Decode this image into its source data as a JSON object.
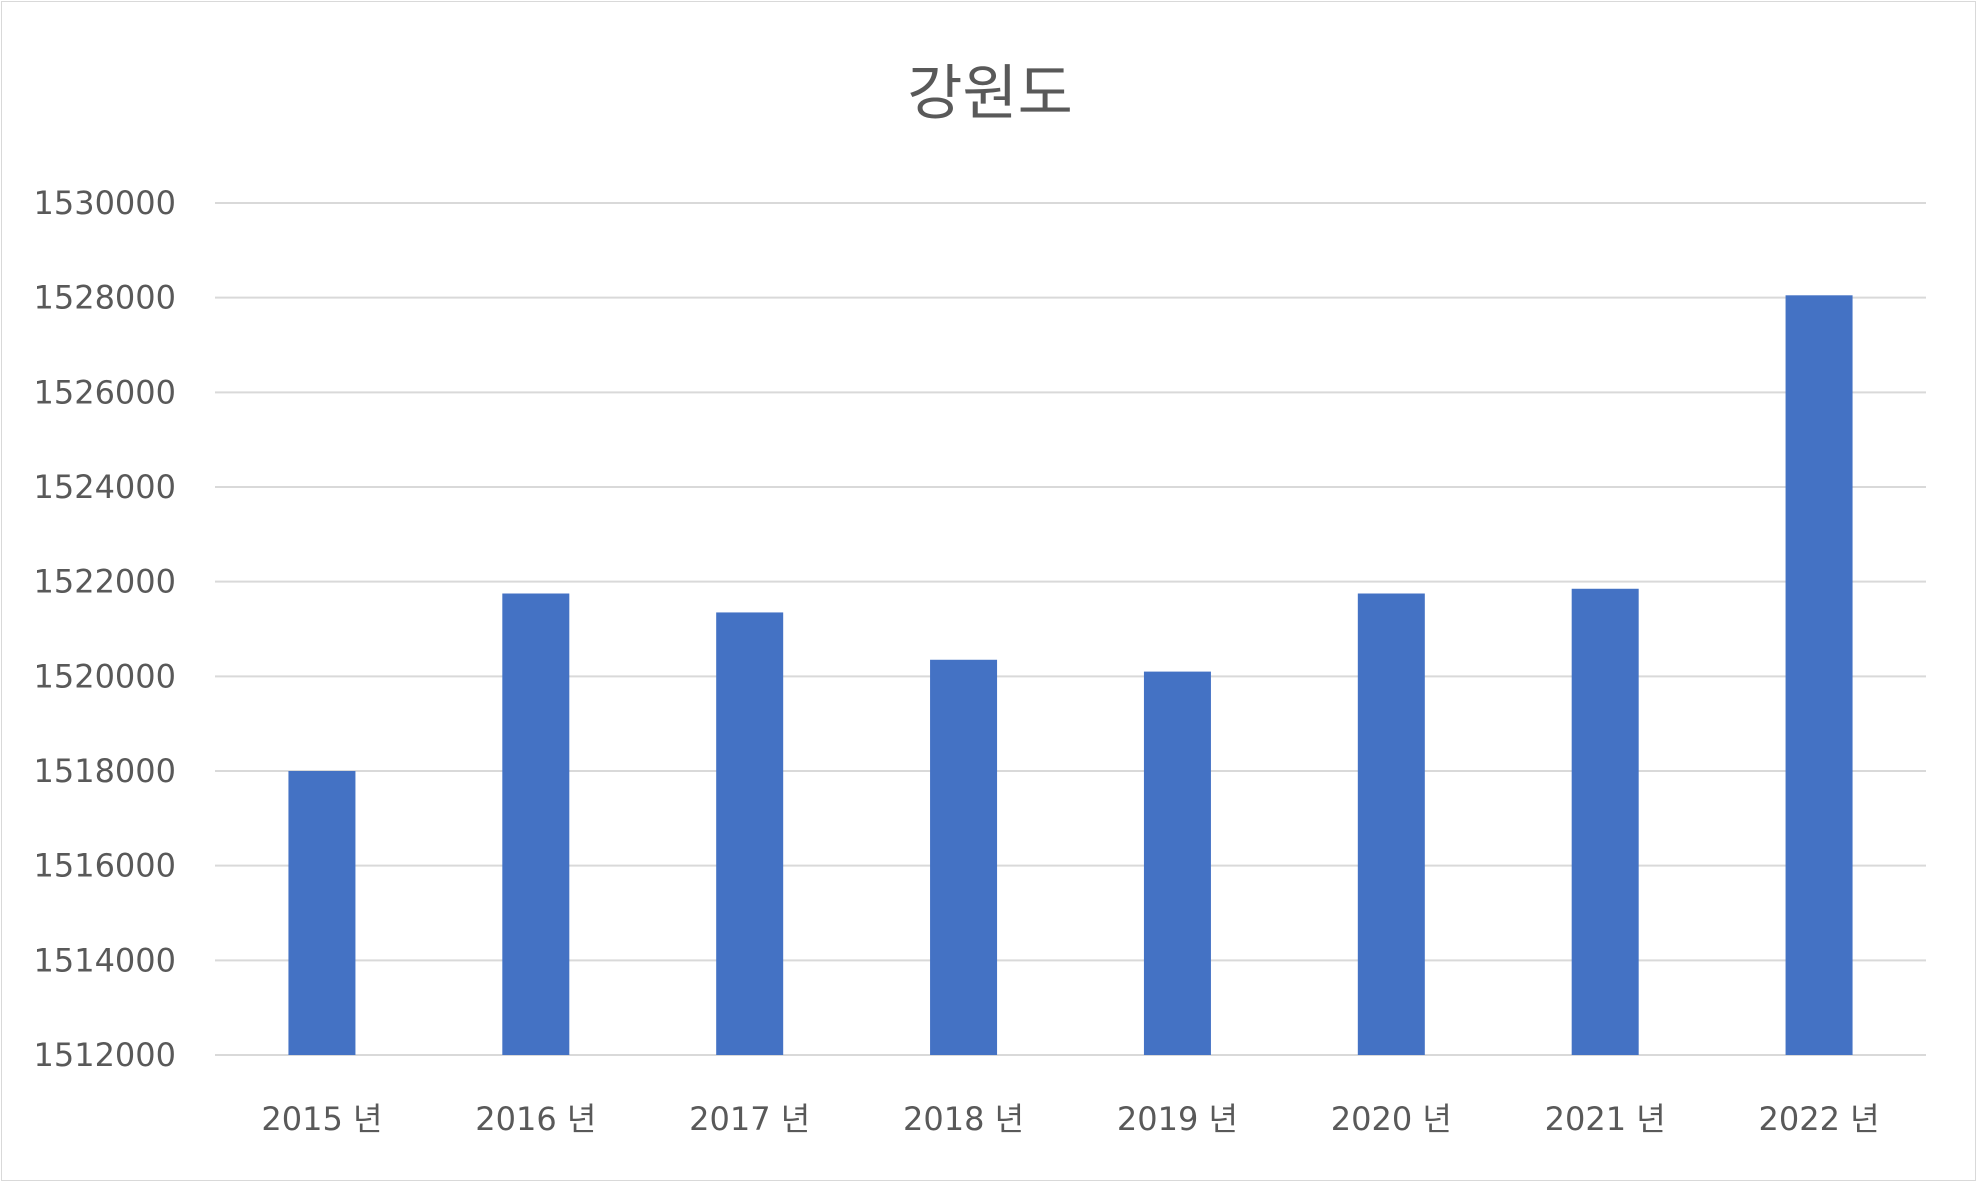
{
  "chart_data": {
    "type": "bar",
    "title": "강원도",
    "categories": [
      "2015 년",
      "2016 년",
      "2017 년",
      "2018 년",
      "2019 년",
      "2020 년",
      "2021 년",
      "2022 년"
    ],
    "values": [
      1518000,
      1521750,
      1521350,
      1520350,
      1520100,
      1521750,
      1521850,
      1528050
    ],
    "ylim": [
      1512000,
      1530000
    ],
    "yticks": [
      "1512000",
      "1514000",
      "1516000",
      "1518000",
      "1520000",
      "1522000",
      "1524000",
      "1526000",
      "1528000",
      "1530000"
    ],
    "xlabel": "",
    "ylabel": "",
    "grid": true,
    "legend": "none",
    "colors": {
      "bar": "#4472c4",
      "grid": "#d9d9d9",
      "text": "#595959"
    }
  }
}
